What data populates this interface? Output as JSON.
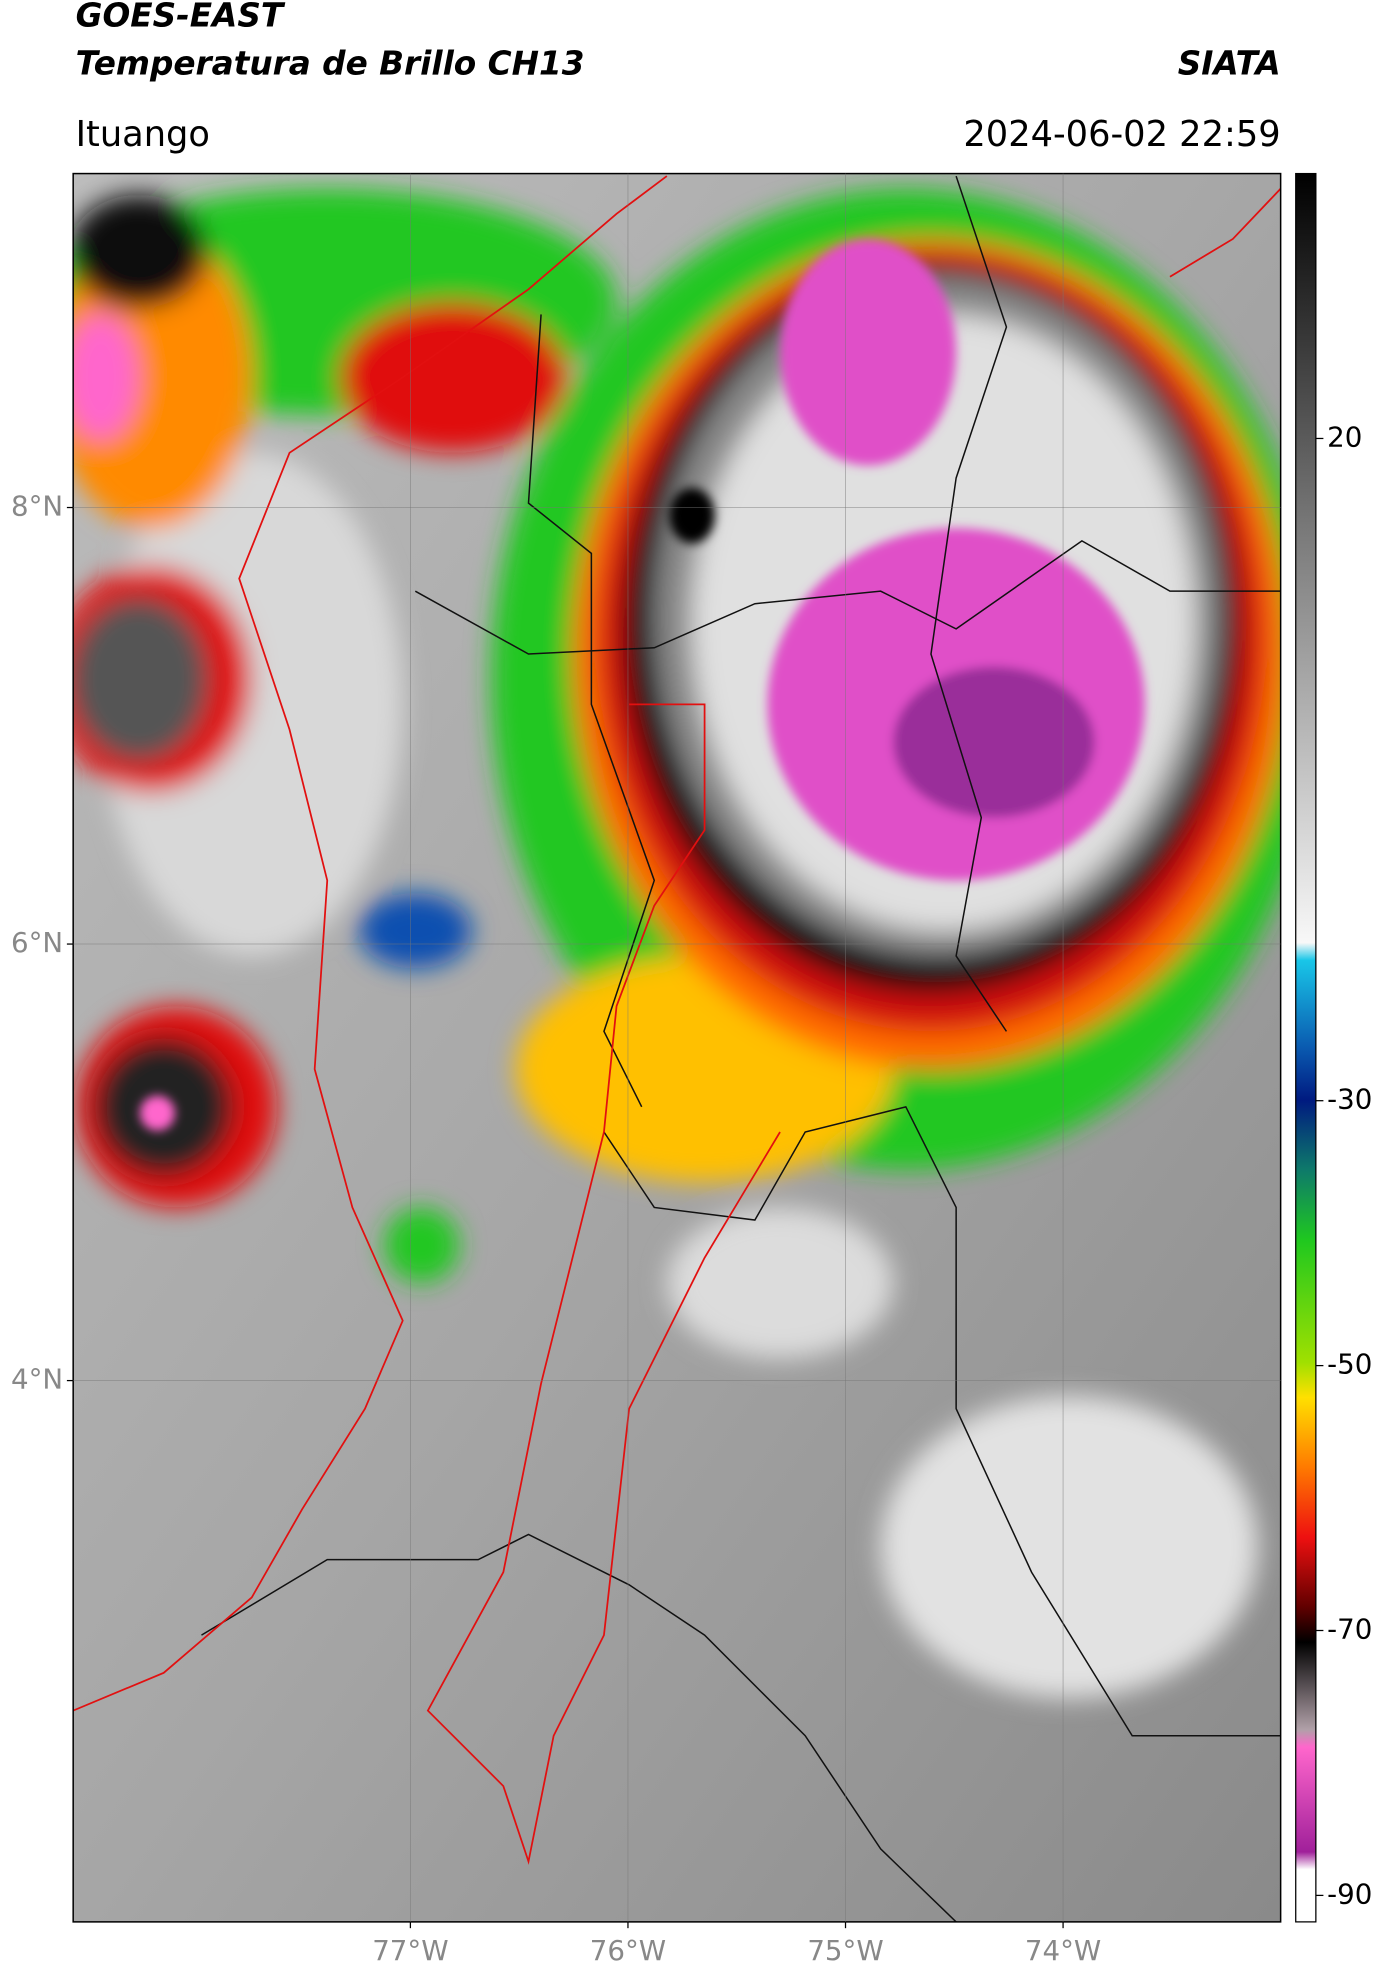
{
  "header": {
    "title": "GOES-EAST",
    "subtitle": "Temperatura de Brillo CH13",
    "source": "SIATA",
    "location": "Ituango",
    "datetime": "2024-06-02 22:59"
  },
  "map": {
    "lat_range": [
      1.52,
      9.53
    ],
    "lon_range": [
      -78.55,
      -73.0
    ],
    "lat_ticks": [
      {
        "value": 8,
        "label": "8°N"
      },
      {
        "value": 6,
        "label": "6°N"
      },
      {
        "value": 4,
        "label": "4°N"
      }
    ],
    "lon_ticks": [
      {
        "value": -77,
        "label": "77°W"
      },
      {
        "value": -76,
        "label": "76°W"
      },
      {
        "value": -75,
        "label": "75°W"
      },
      {
        "value": -74,
        "label": "74°W"
      }
    ]
  },
  "colorbar": {
    "range": [
      -92,
      40
    ],
    "ticks": [
      20,
      -30,
      -50,
      -70,
      -90
    ]
  }
}
